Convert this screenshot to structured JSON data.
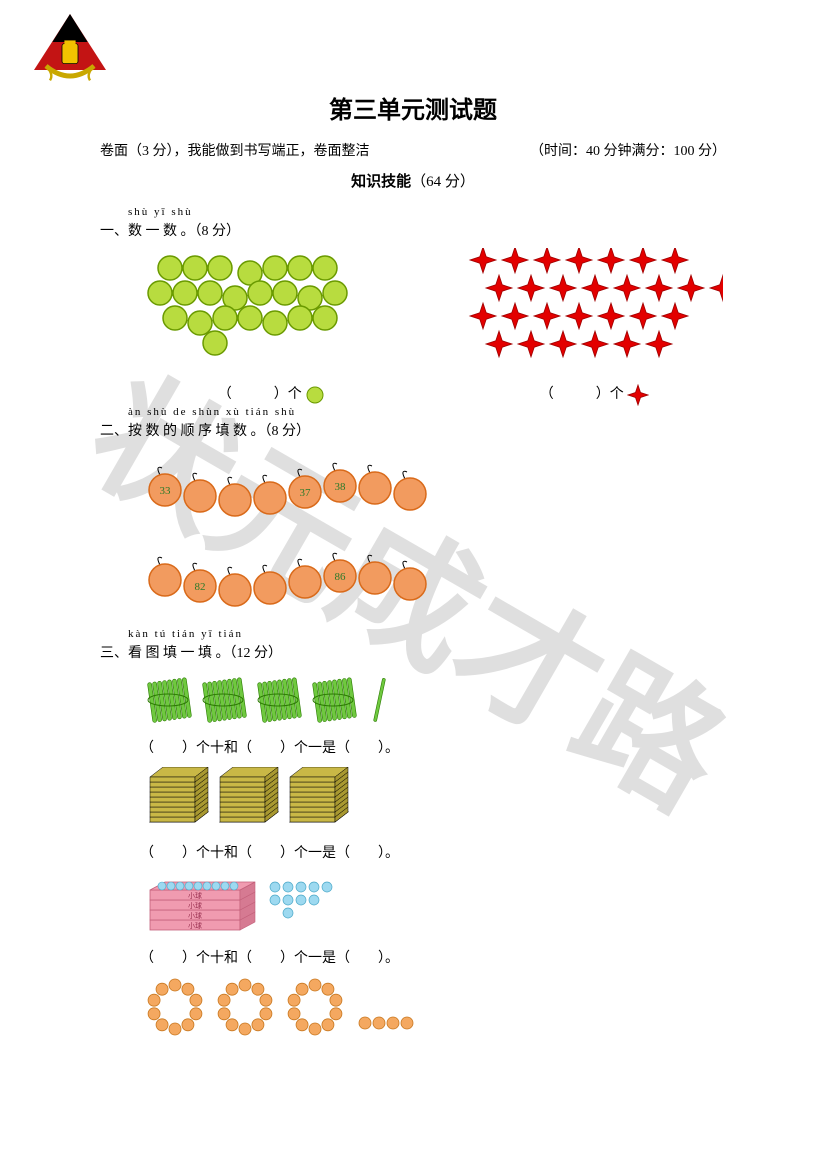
{
  "watermark": "状元成才路",
  "title": "第三单元测试题",
  "subtitle_left": "卷面（3 分），我能做到书写端正，卷面整洁",
  "subtitle_right": "（时间：40 分钟满分：100 分）",
  "section_header_bold": "知识技能",
  "section_header_score": "（64 分）",
  "q1": {
    "pinyin": "shù yī shù",
    "text": "一、数 一 数 。（8 分）",
    "left_ans": "（　　　）个",
    "right_ans": "（　　　）个",
    "circle_color": "#b8dc3f",
    "circle_stroke": "#6a9a00",
    "star_color": "#e30000",
    "circle_count": 23,
    "star_count": 28
  },
  "q2": {
    "pinyin": "àn shù de shùn xù tián shù",
    "text": "二、按 数 的 顺 序 填 数 。（8 分）",
    "bead_color": "#f29b5f",
    "bead_stroke": "#d96a1a",
    "row1_labels": [
      "33",
      "",
      "",
      "",
      "37",
      "38",
      "",
      ""
    ],
    "row2_labels": [
      "",
      "82",
      "",
      "",
      "",
      "86",
      "",
      ""
    ]
  },
  "q3": {
    "pinyin": "kàn tú tián yī tián",
    "text": "三、看 图 填 一 填 。（12 分）",
    "blank_line": "（　　）个十和（　　）个一是（　　）。",
    "bundle_color": "#6fc93f",
    "block_color": "#c9b846",
    "box_color": "#f09bb0",
    "ball_color": "#9dd9f0",
    "ring_color": "#f4a860"
  }
}
